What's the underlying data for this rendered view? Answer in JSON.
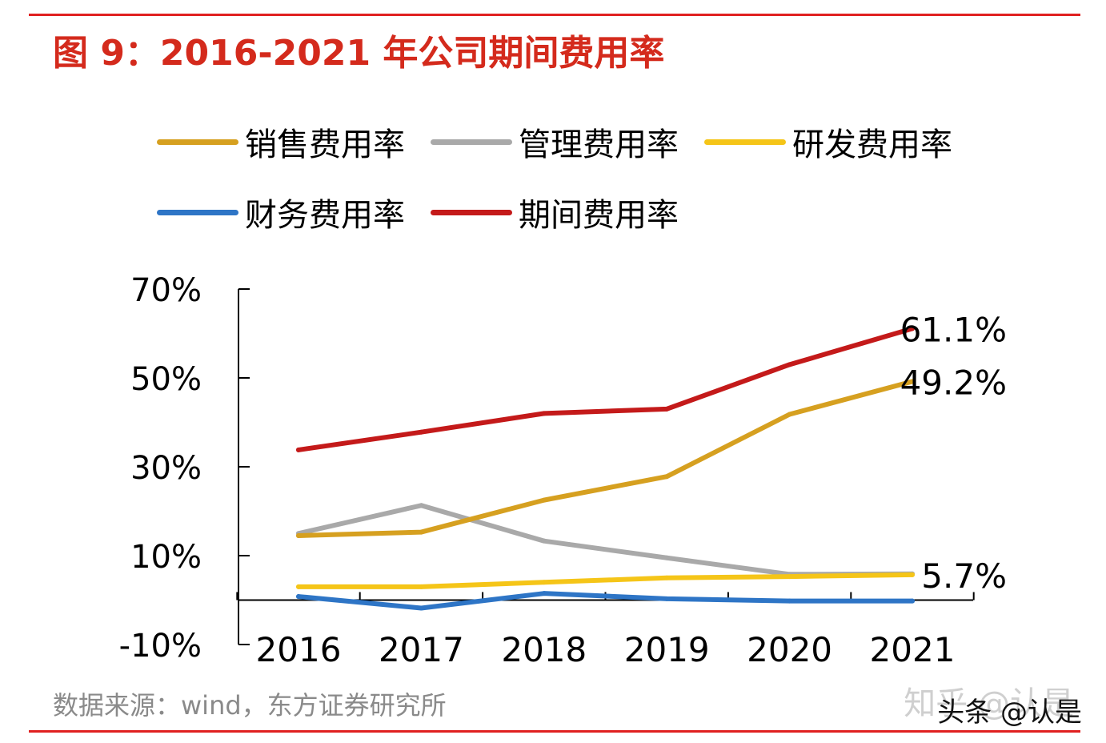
{
  "title": "图 9：2016-2021 年公司期间费用率",
  "source": "数据来源：wind，东方证券研究所",
  "watermark": {
    "zhihu": "知乎 @认是",
    "toutiao": "头条 @认是"
  },
  "colors": {
    "rule": "#e02020",
    "title": "#d42a1c"
  },
  "chart_data": {
    "type": "line",
    "title": "2016-2021 年公司期间费用率",
    "categories": [
      "2016",
      "2017",
      "2018",
      "2019",
      "2020",
      "2021"
    ],
    "ylim": [
      -10,
      70
    ],
    "yticks": [
      -10,
      10,
      30,
      50,
      70
    ],
    "ytick_labels": [
      "-10%",
      "10%",
      "30%",
      "50%",
      "70%"
    ],
    "legend_position": "top",
    "series": [
      {
        "name": "销售费用率",
        "color": "#d6a020",
        "values": [
          14.5,
          15.3,
          22.5,
          27.8,
          41.8,
          49.2
        ]
      },
      {
        "name": "管理费用率",
        "color": "#a9a9a9",
        "values": [
          15.0,
          21.3,
          13.3,
          9.5,
          5.8,
          5.9
        ]
      },
      {
        "name": "研发费用率",
        "color": "#f5c518",
        "values": [
          3.0,
          3.0,
          4.0,
          5.0,
          5.3,
          5.7
        ]
      },
      {
        "name": "财务费用率",
        "color": "#2e75c6",
        "values": [
          0.8,
          -1.8,
          1.5,
          0.3,
          -0.2,
          -0.2
        ]
      },
      {
        "name": "期间费用率",
        "color": "#c41a1a",
        "values": [
          33.8,
          37.8,
          42.0,
          43.0,
          53.0,
          61.1
        ]
      }
    ],
    "annotations": [
      {
        "series": "期间费用率",
        "text": "61.1%"
      },
      {
        "series": "销售费用率",
        "text": "49.2%"
      },
      {
        "series": "研发费用率",
        "text": "5.7%"
      }
    ]
  }
}
